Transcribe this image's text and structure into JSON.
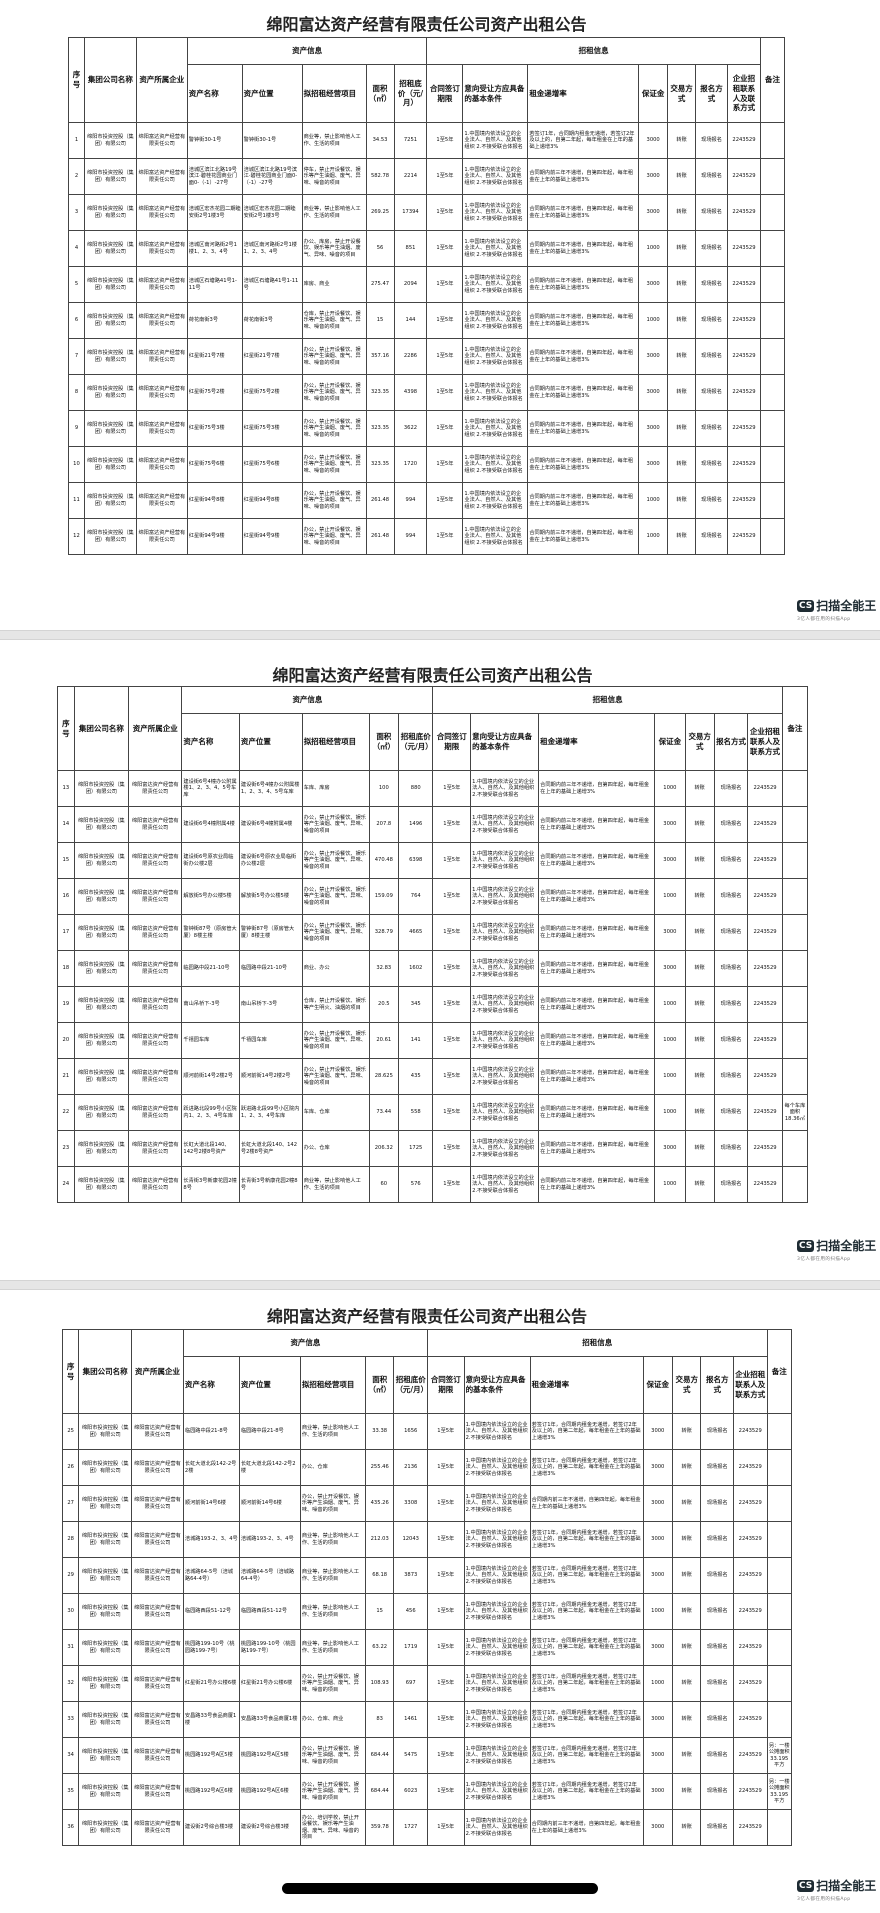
{
  "title": "绵阳富达资产经营有限责任公司资产出租公告",
  "headers": {
    "no": "序号",
    "group": "集团公司名称",
    "owner": "资产所属企业",
    "asset_info": "资产信息",
    "rent_info": "招租信息",
    "asset_name": "资产名称",
    "location": "资产位置",
    "business": "拟招租经营项目",
    "area": "面积（㎡）",
    "price": "招租底价（元/月）",
    "term": "合同签订期限",
    "conditions": "意向受让方应具备的基本条件",
    "rate": "租金递增率",
    "deposit": "保证金",
    "trade": "交易方式",
    "signup": "报名方式",
    "contact": "企业招租联系人及联系方式",
    "note": "备注"
  },
  "common": {
    "group": "绵阳市投资控股（集团）有限公司",
    "owner": "绵阳富达资产经营有限责任公司",
    "term": "1至5年",
    "conditions": "1.中国境内依法设立的企业法人、自然人、及其他组织 2.不接受联合体报名",
    "trade": "转账",
    "signup": "现场报名",
    "contact": "2243529",
    "rate_a": "合同期内前三年不递增，自第四年起，每年租金在上年的基础上递增3%",
    "rate_b": "若签订1年，合同期内租金无递增，若签订2年及以上的，自第二年起，每年租金在上年的基础上递增3%",
    "biz_office": "办公，禁止开设餐饮、娱乐等产生油烟、废气、异味、噪音的项目",
    "biz_shop": "商业等，禁止影响他人工作、生活的项目"
  },
  "watermark": {
    "badge": "CS",
    "name": "扫描全能王",
    "tagline": "3亿人都在用的扫描App"
  },
  "pages": [
    {
      "rows": [
        {
          "no": "1",
          "name": "警钟街30-1号",
          "loc": "警钟街30-1号",
          "biz": "商业等，禁止影响他人工作、生活的项目",
          "area": "34.53",
          "price": "7251",
          "rate": "b",
          "deposit": "3000",
          "note": ""
        },
        {
          "no": "2",
          "name": "涪城区滨江北路19号滨江·碧桂花园商业门面0-（-1）-27号",
          "loc": "涪城区滨江北路19号滨江·碧桂花园商业门面0-（-1）-27号",
          "biz": "停车，禁止开设餐饮、娱乐等产生油烟、废气、异味、噪音的项目",
          "area": "582.78",
          "price": "2214",
          "rate": "a",
          "deposit": "3000",
          "note": ""
        },
        {
          "no": "3",
          "name": "涪城区宏杰花园二期睦安街2号1楼3号",
          "loc": "涪城区宏杰花园二期睦安街2号1楼3号",
          "biz": "商业等，禁止影响他人工作、生活的项目",
          "area": "269.25",
          "price": "17394",
          "rate": "a",
          "deposit": "3000",
          "note": ""
        },
        {
          "no": "4",
          "name": "涪城区南河路街2号1楼1、2、3、4号",
          "loc": "涪城区南河路街2号1楼1、2、3、4号",
          "biz": "办公、库房，禁止开设餐饮、娱乐等产生油烟、废气、异味、噪音的项目",
          "area": "56",
          "price": "851",
          "rate": "a",
          "deposit": "1000",
          "note": ""
        },
        {
          "no": "5",
          "name": "涪城区石塘路41号1-11号",
          "loc": "涪城区石塘路41号1-11号",
          "biz": "库房、商业",
          "area": "275.47",
          "price": "2094",
          "rate": "a",
          "deposit": "3000",
          "note": ""
        },
        {
          "no": "6",
          "name": "荷花南街3号",
          "loc": "荷花南街3号",
          "biz": "仓库，禁止开设餐饮、娱乐等产生油烟、废气、异味、噪音的项目",
          "area": "15",
          "price": "144",
          "rate": "a",
          "deposit": "1000",
          "note": ""
        },
        {
          "no": "7",
          "name": "红星街21号7楼",
          "loc": "红星街21号7楼",
          "biz": "办公，禁止开设餐饮、娱乐等产生油烟、废气、异味、噪音的项目",
          "area": "357.16",
          "price": "2286",
          "rate": "a",
          "deposit": "3000",
          "note": ""
        },
        {
          "no": "8",
          "name": "红星街75号2楼",
          "loc": "红星街75号2楼",
          "biz": "办公，禁止开设餐饮、娱乐等产生油烟、废气、异味、噪音的项目",
          "area": "323.35",
          "price": "4398",
          "rate": "a",
          "deposit": "3000",
          "note": ""
        },
        {
          "no": "9",
          "name": "红星街75号3楼",
          "loc": "红星街75号3楼",
          "biz": "办公，禁止开设餐饮、娱乐等产生油烟、废气、异味、噪音的项目",
          "area": "323.35",
          "price": "3622",
          "rate": "a",
          "deposit": "3000",
          "note": ""
        },
        {
          "no": "10",
          "name": "红星街75号6楼",
          "loc": "红星街75号6楼",
          "biz": "办公，禁止开设餐饮、娱乐等产生油烟、废气、异味、噪音的项目",
          "area": "323.35",
          "price": "1720",
          "rate": "a",
          "deposit": "3000",
          "note": ""
        },
        {
          "no": "11",
          "name": "红星街94号8楼",
          "loc": "红星街94号8楼",
          "biz": "办公，禁止开设餐饮、娱乐等产生油烟、废气、异味、噪音的项目",
          "area": "261.48",
          "price": "994",
          "rate": "a",
          "deposit": "1000",
          "note": ""
        },
        {
          "no": "12",
          "name": "红星街94号9楼",
          "loc": "红星街94号9楼",
          "biz": "办公，禁止开设餐饮、娱乐等产生油烟、废气、异味、噪音的项目",
          "area": "261.48",
          "price": "994",
          "rate": "a",
          "deposit": "1000",
          "note": ""
        }
      ]
    },
    {
      "rows": [
        {
          "no": "13",
          "name": "建设街6号4幢办公附属楼1、2、3、4、5号车库",
          "loc": "建设街6号4幢办公附属楼1、2、3、4、5号车库",
          "biz": "车库、库房",
          "area": "100",
          "price": "880",
          "rate": "a",
          "deposit": "1000",
          "note": ""
        },
        {
          "no": "14",
          "name": "建设街6号4幢附属4楼",
          "loc": "建设街6号4幢附属4楼",
          "biz": "办公，禁止开设餐饮、娱乐等产生油烟、废气、异味、噪音的项目",
          "area": "207.8",
          "price": "1496",
          "rate": "a",
          "deposit": "3000",
          "note": ""
        },
        {
          "no": "15",
          "name": "建设街6号原农业局临街办公楼2层",
          "loc": "建设街6号原农业局临街办公楼2层",
          "biz": "办公，禁止开设餐饮、娱乐等产生油烟、废气、异味、噪音的项目",
          "area": "470.48",
          "price": "6398",
          "rate": "a",
          "deposit": "3000",
          "note": ""
        },
        {
          "no": "16",
          "name": "解放街5号办公楼5楼",
          "loc": "解放街5号办公楼5楼",
          "biz": "办公，禁止开设餐饮、娱乐等产生油烟、废气、异味、噪音的项目",
          "area": "159.09",
          "price": "764",
          "rate": "a",
          "deposit": "1000",
          "note": ""
        },
        {
          "no": "17",
          "name": "警钟街87号（原房管大厦）8楼主楼",
          "loc": "警钟街87号（原房管大厦）8楼主楼",
          "biz": "办公，禁止开设餐饮、娱乐等产生油烟、废气、异味、噪音的项目",
          "area": "328.79",
          "price": "4665",
          "rate": "a",
          "deposit": "3000",
          "note": ""
        },
        {
          "no": "18",
          "name": "临园路中段21-10号",
          "loc": "临园路中段21-10号",
          "biz": "商业、办公",
          "area": "32.83",
          "price": "1602",
          "rate": "a",
          "deposit": "3000",
          "note": ""
        },
        {
          "no": "19",
          "name": "南山吊桥下-3号",
          "loc": "南山吊桥下-3号",
          "biz": "仓库，禁止开设餐饮、娱乐等产生明火、油烟的项目",
          "area": "20.5",
          "price": "345",
          "rate": "a",
          "deposit": "1000",
          "note": ""
        },
        {
          "no": "20",
          "name": "千禧园车库",
          "loc": "千禧园车库",
          "biz": "办公，禁止开设餐饮、娱乐等产生油烟、废气、异味、噪音的项目",
          "area": "20.61",
          "price": "141",
          "rate": "a",
          "deposit": "1000",
          "note": ""
        },
        {
          "no": "21",
          "name": "顺河前街14号2楼2号",
          "loc": "顺河前街14号2楼2号",
          "biz": "办公，禁止开设餐饮、娱乐等产生油烟、废气、异味、噪音的项目",
          "area": "28.625",
          "price": "435",
          "rate": "a",
          "deposit": "1000",
          "note": ""
        },
        {
          "no": "22",
          "name": "跃进路北段99号小区院内1、2、3、4号车库",
          "loc": "跃进路北段99号小区院内1、2、3、4号车库",
          "biz": "车库、仓库",
          "area": "73.44",
          "price": "558",
          "rate": "a",
          "deposit": "1000",
          "note": "每个车库面积18.36㎡"
        },
        {
          "no": "23",
          "name": "长虹大道北段140、142号2楼8号资产",
          "loc": "长虹大道北段140、142号2楼8号资产",
          "biz": "办公、仓库",
          "area": "206.32",
          "price": "1725",
          "rate": "a",
          "deposit": "3000",
          "note": ""
        },
        {
          "no": "24",
          "name": "长青街3号新康花园2幢8号",
          "loc": "长青街3号新康花园2幢8号",
          "biz": "商业等，禁止影响他人工作、生活的项目",
          "area": "60",
          "price": "576",
          "rate": "a",
          "deposit": "1000",
          "note": ""
        }
      ]
    },
    {
      "rows": [
        {
          "no": "25",
          "name": "临园路中段21-8号",
          "loc": "临园路中段21-8号",
          "biz": "商业等，禁止影响他人工作、生活的项目",
          "area": "33.38",
          "price": "1656",
          "rate": "b",
          "deposit": "3000",
          "note": ""
        },
        {
          "no": "26",
          "name": "长虹大道北段142-2号2楼",
          "loc": "长虹大道北段142-2号2楼",
          "biz": "办公、仓库",
          "area": "255.46",
          "price": "2136",
          "rate": "b",
          "deposit": "3000",
          "note": ""
        },
        {
          "no": "27",
          "name": "顺河前街14号6楼",
          "loc": "顺河前街14号6楼",
          "biz": "办公，禁止开设餐饮、娱乐等产生油烟、废气、异味、噪音的项目",
          "area": "435.26",
          "price": "3308",
          "rate": "a",
          "deposit": "3000",
          "note": ""
        },
        {
          "no": "28",
          "name": "涪城路193-2、3、4号",
          "loc": "涪城路193-2、3、4号",
          "biz": "商业等，禁止影响他人工作、生活的项目",
          "area": "212.03",
          "price": "12043",
          "rate": "b",
          "deposit": "3000",
          "note": ""
        },
        {
          "no": "29",
          "name": "涪城路64-5号（涪城路64-4号）",
          "loc": "涪城路64-5号（涪城路64-4号）",
          "biz": "商业等，禁止影响他人工作、生活的项目",
          "area": "68.18",
          "price": "3873",
          "rate": "b",
          "deposit": "3000",
          "note": ""
        },
        {
          "no": "30",
          "name": "临园路西段51-12号",
          "loc": "临园路西段51-12号",
          "biz": "商业等，禁止影响他人工作、生活的项目",
          "area": "15",
          "price": "456",
          "rate": "b",
          "deposit": "1000",
          "note": ""
        },
        {
          "no": "31",
          "name": "桃园路199-10号（桃园路199-7号）",
          "loc": "桃园路199-10号（桃园路199-7号）",
          "biz": "商业等，禁止影响他人工作、生活的项目",
          "area": "63.22",
          "price": "1719",
          "rate": "b",
          "deposit": "3000",
          "note": ""
        },
        {
          "no": "32",
          "name": "红星街21号办公楼6楼",
          "loc": "红星街21号办公楼6楼",
          "biz": "办公，禁止开设餐饮、娱乐等产生油烟、废气、异味、噪音的项目",
          "area": "108.93",
          "price": "697",
          "rate": "b",
          "deposit": "1000",
          "note": ""
        },
        {
          "no": "33",
          "name": "安昌路33号食品商厦1楼",
          "loc": "安昌路33号食品商厦1楼",
          "biz": "办公、仓库、商业",
          "area": "83",
          "price": "1461",
          "rate": "b",
          "deposit": "3000",
          "note": ""
        },
        {
          "no": "34",
          "name": "桃园路192号A区5楼",
          "loc": "桃园路192号A区5楼",
          "biz": "办公，禁止开设餐饮、娱乐等产生油烟、废气、异味、噪音的项目",
          "area": "684.44",
          "price": "5475",
          "rate": "b",
          "deposit": "3000",
          "note": "另：一楼公摊面积33.195平方"
        },
        {
          "no": "35",
          "name": "桃园路192号A区6楼",
          "loc": "桃园路192号A区6楼",
          "biz": "办公，禁止开设餐饮、娱乐等产生油烟、废气、异味、噪音的项目",
          "area": "684.44",
          "price": "6023",
          "rate": "b",
          "deposit": "3000",
          "note": "另：一楼公摊面积33.195平方"
        },
        {
          "no": "36",
          "name": "建设街2号综合楼3楼",
          "loc": "建设街2号综合楼3楼",
          "biz": "办公、培训学校，禁止开设餐饮、娱乐等产生油烟、废气、异味、噪音的项目",
          "area": "359.78",
          "price": "1727",
          "rate": "a",
          "deposit": "3000",
          "note": ""
        }
      ]
    }
  ]
}
